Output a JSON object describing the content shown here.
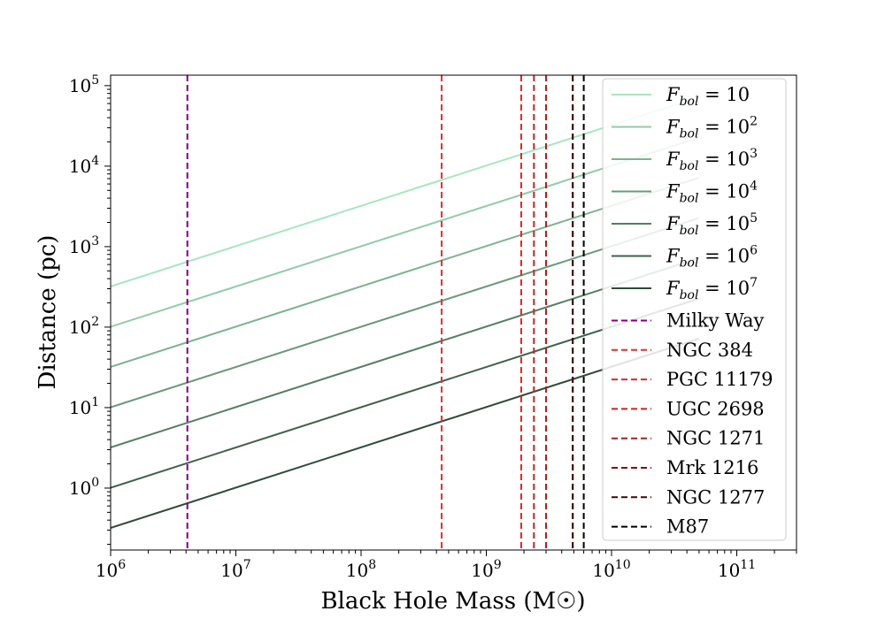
{
  "chart_data": {
    "type": "line",
    "title": "",
    "xlabel": "Black Hole Mass (M☉)",
    "ylabel": "Distance (pc)",
    "xscale": "log",
    "yscale": "log",
    "xlim": [
      1000000.0,
      300000000000.0
    ],
    "ylim": [
      0.17,
      135000.0
    ],
    "xticks": [
      {
        "value": 1000000.0,
        "base": "10",
        "exp": "6"
      },
      {
        "value": 10000000.0,
        "base": "10",
        "exp": "7"
      },
      {
        "value": 100000000.0,
        "base": "10",
        "exp": "8"
      },
      {
        "value": 1000000000.0,
        "base": "10",
        "exp": "9"
      },
      {
        "value": 10000000000.0,
        "base": "10",
        "exp": "10"
      },
      {
        "value": 100000000000.0,
        "base": "10",
        "exp": "11"
      }
    ],
    "yticks": [
      {
        "value": 1,
        "base": "10",
        "exp": "0"
      },
      {
        "value": 10,
        "base": "10",
        "exp": "1"
      },
      {
        "value": 100,
        "base": "10",
        "exp": "2"
      },
      {
        "value": 1000,
        "base": "10",
        "exp": "3"
      },
      {
        "value": 10000,
        "base": "10",
        "exp": "4"
      },
      {
        "value": 100000,
        "base": "10",
        "exp": "5"
      }
    ],
    "grid": false,
    "legend_position": "upper-right",
    "series": [
      {
        "name": "F_bol = 10",
        "label_base": "F",
        "label_sub": "bol",
        "label_value": "10",
        "label_exp": "",
        "color": "#a6e6c0",
        "x": [
          1000000.0,
          50000000000.0
        ],
        "y": [
          320.0,
          72000.0
        ]
      },
      {
        "name": "F_bol = 10^2",
        "label_base": "F",
        "label_sub": "bol",
        "label_value": "10",
        "label_exp": "2",
        "color": "#91cba8",
        "x": [
          1000000.0,
          50000000000.0
        ],
        "y": [
          101,
          22600.0
        ]
      },
      {
        "name": "F_bol = 10^3",
        "label_base": "F",
        "label_sub": "bol",
        "label_value": "10",
        "label_exp": "3",
        "color": "#7db291",
        "x": [
          1000000.0,
          50000000000.0
        ],
        "y": [
          32,
          7200.0
        ]
      },
      {
        "name": "F_bol = 10^4",
        "label_base": "F",
        "label_sub": "bol",
        "label_value": "10",
        "label_exp": "4",
        "color": "#69987b",
        "x": [
          1000000.0,
          50000000000.0
        ],
        "y": [
          10.1,
          2260.0
        ]
      },
      {
        "name": "F_bol = 10^5",
        "label_base": "F",
        "label_sub": "bol",
        "label_value": "10",
        "label_exp": "5",
        "color": "#537e62",
        "x": [
          1000000.0,
          50000000000.0
        ],
        "y": [
          3.2,
          720.0
        ]
      },
      {
        "name": "F_bol = 10^6",
        "label_base": "F",
        "label_sub": "bol",
        "label_value": "10",
        "label_exp": "6",
        "color": "#3f604c",
        "x": [
          1000000.0,
          50000000000.0
        ],
        "y": [
          1.01,
          226.0
        ]
      },
      {
        "name": "F_bol = 10^7",
        "label_base": "F",
        "label_sub": "bol",
        "label_value": "10",
        "label_exp": "7",
        "color": "#2f4a3a",
        "x": [
          1000000.0,
          50000000000.0
        ],
        "y": [
          0.32,
          72
        ]
      }
    ],
    "vertical_lines": [
      {
        "name": "Milky Way",
        "x": 4100000.0,
        "color": "#800080"
      },
      {
        "name": "NGC 384",
        "x": 440000000.0,
        "color": "#e03030"
      },
      {
        "name": "PGC 11179",
        "x": 1900000000.0,
        "color": "#d42a2a"
      },
      {
        "name": "UGC 2698",
        "x": 2400000000.0,
        "color": "#c82424"
      },
      {
        "name": "NGC 1271",
        "x": 3000000000.0,
        "color": "#b01e1e"
      },
      {
        "name": "Mrk 1216",
        "x": 4900000000.0,
        "color": "#7a1212"
      },
      {
        "name": "NGC 1277",
        "x": 4900000000.0,
        "color": "#3a0a0a"
      },
      {
        "name": "M87",
        "x": 6000000000.0,
        "color": "#000000"
      }
    ]
  }
}
